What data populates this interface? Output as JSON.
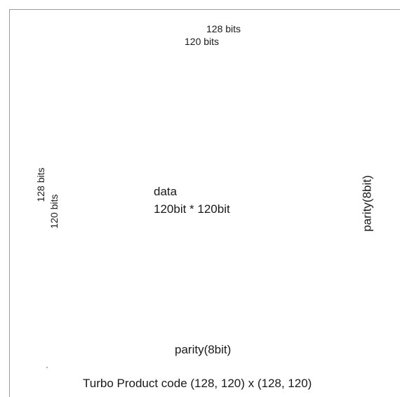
{
  "top": {
    "outer_label": "128 bits",
    "inner_label": "120 bits"
  },
  "left": {
    "outer_label": "128 bits",
    "inner_label": "120 bits"
  },
  "data_block": {
    "title": "data",
    "dimensions": "120bit * 120bit"
  },
  "right_parity_label": "parity(8bit)",
  "bottom_parity_label": "parity(8bit)",
  "caption": "Turbo Product code (128, 120) x (128, 120)"
}
